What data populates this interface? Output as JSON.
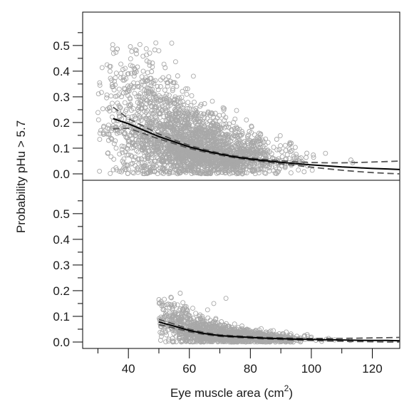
{
  "chart_data": {
    "type": "scatter",
    "xlabel_parts": {
      "main": "Eye muscle area (cm",
      "sup": "2",
      "end": ")"
    },
    "ylabel": "Probability pHu > 5.7",
    "xlim": [
      25,
      129
    ],
    "x_ticks": [
      40,
      60,
      80,
      100,
      120
    ],
    "x_minor_ticks": [
      30,
      50,
      70,
      90,
      110
    ],
    "y_ticks": [
      0.0,
      0.1,
      0.2,
      0.3,
      0.4,
      0.5
    ],
    "y_tick_labels": [
      "0.0",
      "0.1",
      "0.2",
      "0.3",
      "0.4",
      "0.5"
    ],
    "colors": {
      "points": "#a8a8a8",
      "fit": "#000000",
      "ci": "#555555",
      "frame": "#000000"
    },
    "panels": [
      {
        "ylim": [
          -0.025,
          0.63
        ],
        "point_cloud": {
          "x_range": [
            30,
            125
          ],
          "max_y_approx": 0.51
        },
        "fit": {
          "x": [
            35,
            40,
            45,
            50,
            55,
            60,
            65,
            70,
            75,
            80,
            85,
            90,
            95,
            100,
            105,
            110,
            115,
            120,
            125,
            129
          ],
          "y": [
            0.215,
            0.195,
            0.17,
            0.145,
            0.125,
            0.105,
            0.09,
            0.077,
            0.066,
            0.058,
            0.051,
            0.045,
            0.04,
            0.035,
            0.031,
            0.027,
            0.024,
            0.021,
            0.019,
            0.017
          ]
        },
        "ci_upper": {
          "x": [
            35,
            40,
            45,
            50,
            55,
            60,
            65,
            70,
            75,
            80,
            85,
            90,
            95,
            100,
            105,
            110,
            115,
            120,
            125,
            129
          ],
          "y": [
            0.26,
            0.215,
            0.185,
            0.155,
            0.132,
            0.111,
            0.095,
            0.081,
            0.07,
            0.062,
            0.056,
            0.051,
            0.047,
            0.044,
            0.043,
            0.043,
            0.044,
            0.046,
            0.048,
            0.05
          ]
        },
        "ci_lower": {
          "x": [
            35,
            40,
            45,
            50,
            55,
            60,
            65,
            70,
            75,
            80,
            85,
            90,
            95,
            100,
            105,
            110,
            115,
            120,
            125,
            129
          ],
          "y": [
            0.175,
            0.178,
            0.157,
            0.136,
            0.118,
            0.099,
            0.085,
            0.073,
            0.062,
            0.054,
            0.046,
            0.039,
            0.033,
            0.026,
            0.02,
            0.014,
            0.009,
            0.005,
            0.002,
            0.0
          ]
        }
      },
      {
        "ylim": [
          -0.025,
          0.63
        ],
        "point_cloud": {
          "x_range": [
            50,
            125
          ],
          "max_y_approx": 0.19
        },
        "fit": {
          "x": [
            50,
            55,
            60,
            65,
            70,
            75,
            80,
            85,
            90,
            95,
            100,
            105,
            110,
            115,
            120,
            125,
            129
          ],
          "y": [
            0.078,
            0.062,
            0.045,
            0.033,
            0.025,
            0.021,
            0.018,
            0.015,
            0.013,
            0.011,
            0.01,
            0.009,
            0.008,
            0.007,
            0.006,
            0.006,
            0.005
          ]
        },
        "ci_upper": {
          "x": [
            50,
            55,
            60,
            65,
            70,
            75,
            80,
            85,
            90,
            95,
            100,
            105,
            110,
            115,
            120,
            125,
            129
          ],
          "y": [
            0.088,
            0.07,
            0.05,
            0.037,
            0.028,
            0.024,
            0.021,
            0.018,
            0.016,
            0.015,
            0.014,
            0.014,
            0.014,
            0.015,
            0.016,
            0.017,
            0.018
          ]
        },
        "ci_lower": {
          "x": [
            50,
            55,
            60,
            65,
            70,
            75,
            80,
            85,
            90,
            95,
            100,
            105,
            110,
            115,
            120,
            125,
            129
          ],
          "y": [
            0.068,
            0.054,
            0.04,
            0.029,
            0.022,
            0.018,
            0.015,
            0.012,
            0.01,
            0.007,
            0.006,
            0.004,
            0.003,
            0.002,
            0.001,
            0.0,
            0.0
          ]
        }
      }
    ]
  }
}
